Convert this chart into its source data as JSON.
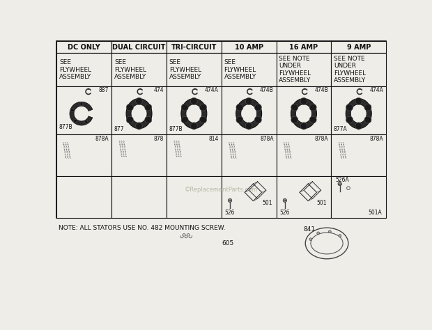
{
  "bg_color": "#eeede8",
  "col_headers": [
    "DC ONLY",
    "DUAL CIRCUIT",
    "TRI-CIRCUIT",
    "10 AMP",
    "16 AMP",
    "9 AMP"
  ],
  "row1_texts": [
    "SEE\nFLYWHEEL\nASSEMBLY",
    "SEE\nFLYWHEEL\nASSEMBLY",
    "SEE\nFLYWHEEL\nASSEMBLY",
    "SEE\nFLYWHEEL\nASSEMBLY",
    "SEE NOTE\nUNDER\nFLYWHEEL\nASSEMBLY",
    "SEE NOTE\nUNDER\nFLYWHEEL\nASSEMBLY"
  ],
  "note": "NOTE: ALL STATORS USE NO. 482 MOUNTING SCREW.",
  "watermark": "©ReplacementParts.com"
}
